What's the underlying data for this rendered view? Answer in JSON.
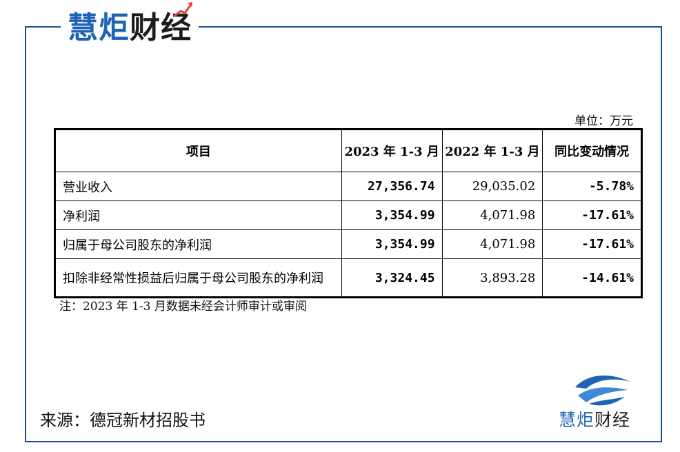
{
  "brand": {
    "part1": "慧炬",
    "part2": "财经"
  },
  "unit": "单位：万元",
  "table": {
    "headers": [
      "项目",
      "2023 年 1-3 月",
      "2022 年 1-3 月",
      "同比变动情况"
    ],
    "rows": [
      {
        "item": "营业收入",
        "v2023": "27,356.74",
        "v2022": "29,035.02",
        "change": "-5.78%"
      },
      {
        "item": "净利润",
        "v2023": "3,354.99",
        "v2022": "4,071.98",
        "change": "-17.61%"
      },
      {
        "item": "归属于母公司股东的净利润",
        "v2023": "3,354.99",
        "v2022": "4,071.98",
        "change": "-17.61%"
      },
      {
        "item": "扣除非经常性损益后归属于母公司股东的净利润",
        "v2023": "3,324.45",
        "v2022": "3,893.28",
        "change": "-14.61%"
      }
    ]
  },
  "note": "注：2023 年 1-3 月数据未经会计师审计或审阅",
  "source": "来源：德冠新材招股书",
  "colors": {
    "frame": "#1b4f93",
    "brand_blue": "#1e63b5",
    "brand_dark": "#1c1c1c",
    "accent_arrow": "#e0453a"
  },
  "icons": {
    "logo": "wave-logo-icon",
    "arrow": "up-arrow-icon"
  }
}
